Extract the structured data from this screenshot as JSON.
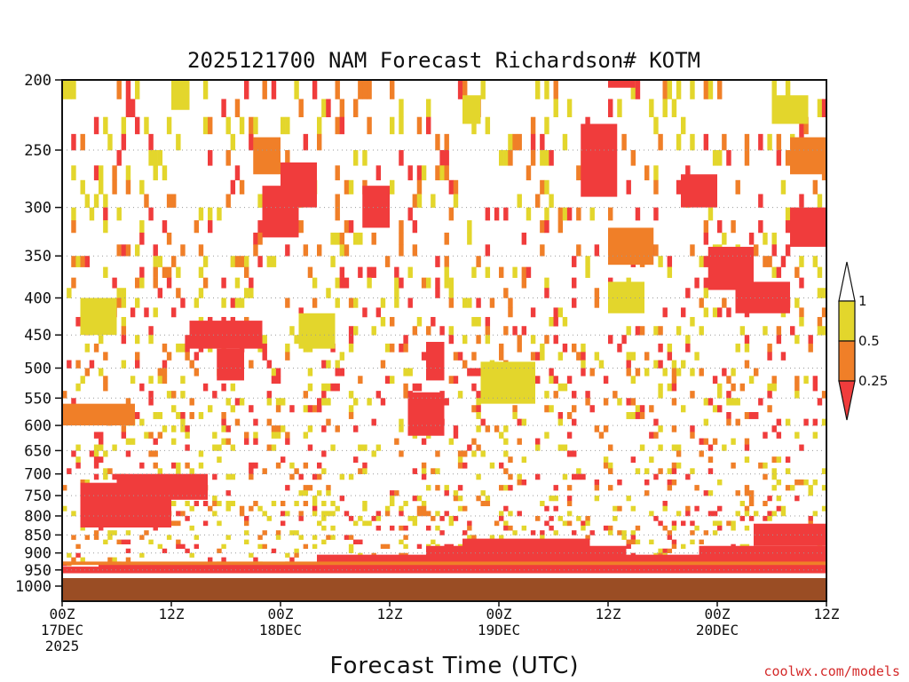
{
  "chart_data": {
    "type": "heatmap",
    "title": "2025121700 NAM Forecast Richardson# KOTM",
    "xlabel": "Forecast Time (UTC)",
    "credit": "coolwx.com/models",
    "y_axis": {
      "label": "",
      "scale": "pressure (hPa), log, inverted",
      "range": [
        1000,
        200
      ],
      "ticks": [
        "200",
        "250",
        "300",
        "350",
        "400",
        "450",
        "500",
        "550",
        "600",
        "650",
        "700",
        "750",
        "800",
        "850",
        "900",
        "950",
        "1000"
      ]
    },
    "x_axis": {
      "range_hours": [
        0,
        84
      ],
      "ticks": [
        {
          "hour": 0,
          "line1": "00Z",
          "line2": "17DEC",
          "line3": "2025"
        },
        {
          "hour": 12,
          "line1": "12Z",
          "line2": "",
          "line3": ""
        },
        {
          "hour": 24,
          "line1": "00Z",
          "line2": "18DEC",
          "line3": ""
        },
        {
          "hour": 36,
          "line1": "12Z",
          "line2": "",
          "line3": ""
        },
        {
          "hour": 48,
          "line1": "00Z",
          "line2": "19DEC",
          "line3": ""
        },
        {
          "hour": 60,
          "line1": "12Z",
          "line2": "",
          "line3": ""
        },
        {
          "hour": 72,
          "line1": "00Z",
          "line2": "20DEC",
          "line3": ""
        },
        {
          "hour": 84,
          "line1": "12Z",
          "line2": "",
          "line3": ""
        }
      ]
    },
    "legend": {
      "placement": "right",
      "bins": [
        {
          "range": "< 0.25",
          "color": "#f03c3c"
        },
        {
          "range": "0.25 - 0.5",
          "color": "#f07f28"
        },
        {
          "range": "0.5 - 1",
          "color": "#e3d62c"
        },
        {
          "range": "> 1",
          "color": "#ffffff"
        }
      ],
      "labels": [
        "1",
        "0.5",
        "0.25"
      ]
    },
    "ground_color": "#9a4d24",
    "grid": "dotted horizontal at pressure ticks",
    "cells": [
      {
        "h0": 0,
        "h1": 84,
        "p0": 960,
        "p1": 940,
        "c": "red"
      },
      {
        "h0": 4,
        "h1": 30,
        "p0": 955,
        "p1": 930,
        "c": "red"
      },
      {
        "h0": 28,
        "h1": 84,
        "p0": 952,
        "p1": 905,
        "c": "red"
      },
      {
        "h0": 40,
        "h1": 62,
        "p0": 930,
        "p1": 880,
        "c": "red"
      },
      {
        "h0": 44,
        "h1": 58,
        "p0": 900,
        "p1": 860,
        "c": "red"
      },
      {
        "h0": 70,
        "h1": 84,
        "p0": 930,
        "p1": 880,
        "c": "red"
      },
      {
        "h0": 76,
        "h1": 84,
        "p0": 880,
        "p1": 820,
        "c": "red"
      },
      {
        "h0": 0,
        "h1": 84,
        "p0": 935,
        "p1": 925,
        "c": "orange"
      },
      {
        "h0": 2,
        "h1": 12,
        "p0": 830,
        "p1": 720,
        "c": "red"
      },
      {
        "h0": 6,
        "h1": 16,
        "p0": 760,
        "p1": 700,
        "c": "red"
      },
      {
        "h0": 14,
        "h1": 22,
        "p0": 470,
        "p1": 430,
        "c": "red"
      },
      {
        "h0": 17,
        "h1": 20,
        "p0": 520,
        "p1": 470,
        "c": "red"
      },
      {
        "h0": 22,
        "h1": 26,
        "p0": 330,
        "p1": 280,
        "c": "red"
      },
      {
        "h0": 24,
        "h1": 28,
        "p0": 300,
        "p1": 260,
        "c": "red"
      },
      {
        "h0": 33,
        "h1": 36,
        "p0": 320,
        "p1": 280,
        "c": "red"
      },
      {
        "h0": 38,
        "h1": 42,
        "p0": 620,
        "p1": 540,
        "c": "red"
      },
      {
        "h0": 40,
        "h1": 42,
        "p0": 520,
        "p1": 460,
        "c": "red"
      },
      {
        "h0": 57,
        "h1": 61,
        "p0": 290,
        "p1": 230,
        "c": "red"
      },
      {
        "h0": 60,
        "h1": 63,
        "p0": 205,
        "p1": 200,
        "c": "red"
      },
      {
        "h0": 68,
        "h1": 72,
        "p0": 300,
        "p1": 270,
        "c": "red"
      },
      {
        "h0": 71,
        "h1": 76,
        "p0": 390,
        "p1": 340,
        "c": "red"
      },
      {
        "h0": 74,
        "h1": 80,
        "p0": 420,
        "p1": 380,
        "c": "red"
      },
      {
        "h0": 80,
        "h1": 84,
        "p0": 340,
        "p1": 300,
        "c": "red"
      },
      {
        "h0": 60,
        "h1": 65,
        "p0": 360,
        "p1": 320,
        "c": "orange"
      },
      {
        "h0": 21,
        "h1": 24,
        "p0": 270,
        "p1": 240,
        "c": "orange"
      },
      {
        "h0": 0,
        "h1": 8,
        "p0": 600,
        "p1": 560,
        "c": "orange"
      },
      {
        "h0": 80,
        "h1": 84,
        "p0": 270,
        "p1": 240,
        "c": "orange"
      },
      {
        "h0": 2,
        "h1": 6,
        "p0": 450,
        "p1": 400,
        "c": "yellow"
      },
      {
        "h0": 26,
        "h1": 30,
        "p0": 470,
        "p1": 420,
        "c": "yellow"
      },
      {
        "h0": 46,
        "h1": 52,
        "p0": 560,
        "p1": 490,
        "c": "yellow"
      },
      {
        "h0": 60,
        "h1": 64,
        "p0": 420,
        "p1": 380,
        "c": "yellow"
      },
      {
        "h0": 78,
        "h1": 82,
        "p0": 230,
        "p1": 210,
        "c": "yellow"
      },
      {
        "h0": 12,
        "h1": 14,
        "p0": 220,
        "p1": 200,
        "c": "yellow"
      },
      {
        "h0": 44,
        "h1": 46,
        "p0": 230,
        "p1": 210,
        "c": "yellow"
      }
    ],
    "scatter_seed": 20251217,
    "scatter_density": 0.16
  }
}
